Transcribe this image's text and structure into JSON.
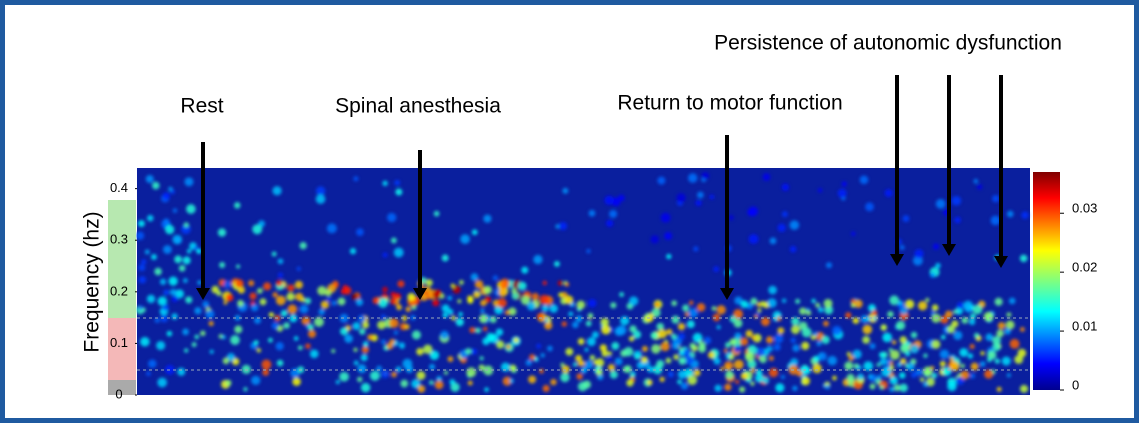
{
  "chart_data": {
    "type": "heatmap",
    "ylabel": "Frequency (hz)",
    "ylim": [
      0,
      0.44
    ],
    "yticks": [
      0,
      0.1,
      0.2,
      0.3,
      0.4
    ],
    "colorbar": {
      "lim": [
        0,
        0.037
      ],
      "ticks": [
        0,
        0.01,
        0.02,
        0.03
      ],
      "colormap": "jet"
    },
    "annotations": [
      {
        "text": "Rest"
      },
      {
        "text": "Spinal anesthesia"
      },
      {
        "text": "Return to motor function"
      },
      {
        "text": "Persistence of autonomic dysfunction"
      }
    ]
  }
}
